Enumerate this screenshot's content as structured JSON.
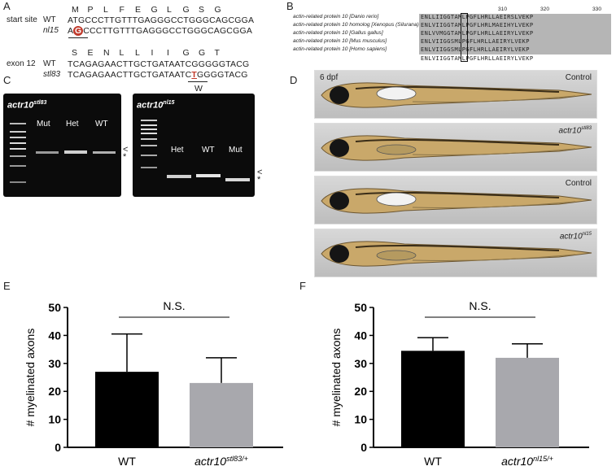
{
  "panels": {
    "A": {
      "label": "A",
      "start_site": {
        "row_label": "start site",
        "aa": [
          "M",
          "P",
          "L",
          "F",
          "E",
          "G",
          "L",
          "G",
          "S",
          "G"
        ],
        "wt_label": "WT",
        "wt_seq": "ATGCCCTTGTTTGAGGGCCTGGGCAGCGGA",
        "mut_label": "nl15",
        "mut_prefix": "A",
        "mut_highlight": "G",
        "mut_suffix": "CCCTTGTTTGAGGGCCTGGGCAGCGGA"
      },
      "exon12": {
        "row_label": "exon 12",
        "aa": [
          "S",
          "E",
          "N",
          "L",
          "L",
          "I",
          "I",
          "G",
          "G",
          "T"
        ],
        "wt_label": "WT",
        "wt_seq": "TCAGAGAACTTGCTGATAATCGGGGGTACG",
        "mut_label": "stl83",
        "mut_prefix": "TCAGAGAACTTGCTGATAATC",
        "mut_highlight": "T",
        "mut_suffix": "GGGGTACG",
        "sub_aa": "W"
      }
    },
    "B": {
      "label": "B",
      "positions": [
        "310",
        "320",
        "330"
      ],
      "species": [
        "actin-related protein 10 [Danio rerio]",
        "actin-related protein 10 homolog [Xenopus (Silurana) tropicalis]",
        "actin-related protein 10 [Gallus gallus]",
        "actin-related protein 10 [Mus musculus]",
        "actin-related protein 10 [Homo sapiens]"
      ],
      "sequences": [
        "ENLLIIGGTAMLPGFLHRLLAEIRSLVEKP",
        "ENLVIIGGTAMLPGFLHRLMAEIHYLVEKP",
        "ENLVVMGGTAMLPGFLHRLLAEIRYLVEKP",
        "ENLVIIGGSMLPGFLHRLLAEIRYLVEKP",
        "ENLVIIGGSMLPGFLHRLLAEIRYLVEKP"
      ],
      "consensus": "ENLVIIGGTAMLPGFLHRLLAEIRYLVEKP"
    },
    "C": {
      "label": "C",
      "gel_left": {
        "title": "actr10",
        "sup": "stl83",
        "lanes": [
          "Mut",
          "Het",
          "WT"
        ]
      },
      "gel_right": {
        "title": "actr10",
        "sup": "nl15",
        "lanes": [
          "Het",
          "WT",
          "Mut"
        ]
      },
      "marks": {
        "arrow": "<",
        "star": "*"
      }
    },
    "D": {
      "label": "D",
      "age": "6 dpf",
      "images": [
        {
          "label": "Control",
          "sup": ""
        },
        {
          "label": "actr10",
          "sup": "stl83"
        },
        {
          "label": "Control",
          "sup": ""
        },
        {
          "label": "actr10",
          "sup": "nl15"
        }
      ]
    },
    "E": {
      "label": "E",
      "sig": "N.S.",
      "xsub_left": "WT",
      "xsub_right": "actr10",
      "xsub_right_sup": "stl83/+"
    },
    "F": {
      "label": "F",
      "sig": "N.S.",
      "xsub_left": "WT",
      "xsub_right": "actr10",
      "xsub_right_sup": "nl15/+"
    }
  },
  "chart_data": [
    {
      "type": "bar",
      "panel": "E",
      "categories": [
        "WT",
        "actr10 stl83/+"
      ],
      "values": [
        27,
        23
      ],
      "error_upper": [
        40.5,
        32
      ],
      "colors": [
        "#000000",
        "#a8a8ad"
      ],
      "ylabel": "# myelinated axons",
      "ylim": [
        0,
        50
      ],
      "yticks": [
        "0",
        "10",
        "20",
        "30",
        "40",
        "50"
      ]
    },
    {
      "type": "bar",
      "panel": "F",
      "categories": [
        "WT",
        "actr10 nl15/+"
      ],
      "values": [
        34.5,
        32
      ],
      "error_upper": [
        39.2,
        37
      ],
      "colors": [
        "#000000",
        "#a8a8ad"
      ],
      "ylabel": "# myelinated axons",
      "ylim": [
        0,
        50
      ],
      "yticks": [
        "0",
        "10",
        "20",
        "30",
        "40",
        "50"
      ]
    }
  ]
}
